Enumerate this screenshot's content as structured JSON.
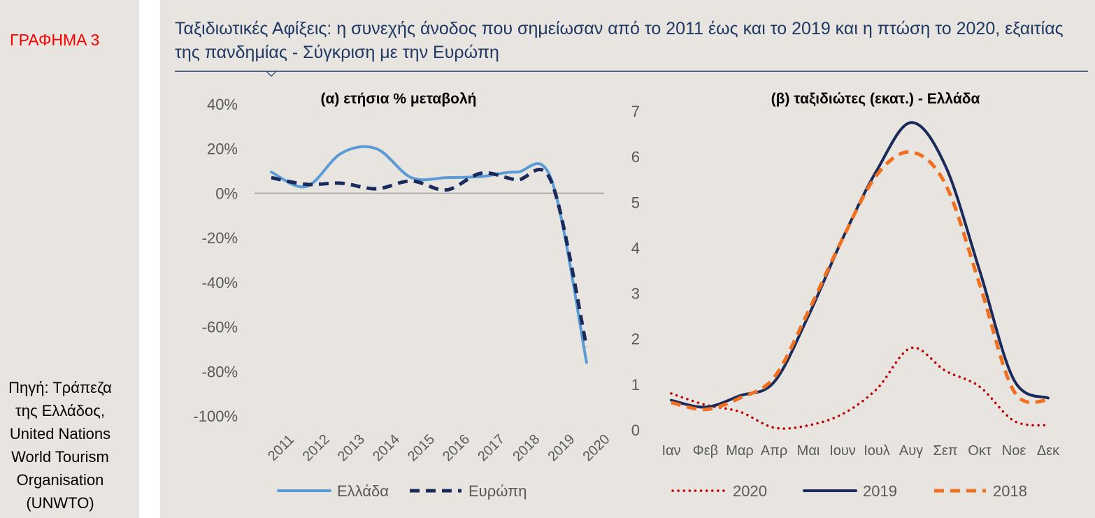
{
  "chart_label": "ΓΡΑΦΗΜΑ 3",
  "source_note": "Πηγή: Τράπεζα της Ελλάδος, United Nations World Tourism Organisation (UNWTO)",
  "title": "Ταξιδιωτικές Αφίξεις: η συνεχής άνοδος που σημείωσαν από το 2011 έως και το 2019 και η πτώση το 2020, εξαιτίας της πανδημίας - Σύγκριση με την Ευρώπη",
  "chart_data": [
    {
      "type": "line",
      "title": "(α) ετήσια % μεταβολή",
      "xlabel": "",
      "ylabel": "",
      "ylim": [
        -100,
        40
      ],
      "yticks": [
        40,
        20,
        0,
        -20,
        -40,
        -60,
        -80,
        -100
      ],
      "ytick_labels": [
        "40%",
        "20%",
        "0%",
        "-20%",
        "-40%",
        "-60%",
        "-80%",
        "-100%"
      ],
      "categories": [
        "2011",
        "2012",
        "2013",
        "2014",
        "2015",
        "2016",
        "2017",
        "2018",
        "2019",
        "2020"
      ],
      "legend": "bottom",
      "series": [
        {
          "name": "Ελλάδα",
          "color": "#5b9bd5",
          "style": "solid",
          "values": [
            9.5,
            3,
            18,
            20,
            7,
            7,
            7.5,
            9.5,
            6,
            -76
          ]
        },
        {
          "name": "Ευρώπη",
          "color": "#1a2a5a",
          "style": "dashed",
          "values": [
            7,
            4,
            4.5,
            2,
            5.5,
            1.5,
            9,
            6,
            5,
            -69
          ]
        }
      ]
    },
    {
      "type": "line",
      "title": "(β) ταξιδιώτες (εκατ.) - Ελλάδα",
      "xlabel": "",
      "ylabel": "",
      "ylim": [
        0,
        7
      ],
      "yticks": [
        7,
        6,
        5,
        4,
        3,
        2,
        1,
        0
      ],
      "ytick_labels": [
        "7",
        "6",
        "5",
        "4",
        "3",
        "2",
        "1",
        "0"
      ],
      "categories": [
        "Ιαν",
        "Φεβ",
        "Μαρ",
        "Απρ",
        "Μαι",
        "Ιουν",
        "Ιουλ",
        "Αυγ",
        "Σεπ",
        "Οκτ",
        "Νοε",
        "Δεκ"
      ],
      "legend": "bottom",
      "series": [
        {
          "name": "2020",
          "color": "#c00000",
          "style": "dotted",
          "values": [
            0.8,
            0.55,
            0.4,
            0.05,
            0.1,
            0.35,
            0.9,
            1.8,
            1.3,
            0.95,
            0.2,
            0.1
          ]
        },
        {
          "name": "2019",
          "color": "#1a2a5a",
          "style": "solid",
          "values": [
            0.65,
            0.5,
            0.75,
            1.05,
            2.5,
            4.2,
            5.7,
            6.75,
            5.8,
            3.5,
            1.1,
            0.7
          ]
        },
        {
          "name": "2018",
          "color": "#f07020",
          "style": "dashed",
          "values": [
            0.6,
            0.45,
            0.7,
            1.15,
            2.6,
            4.2,
            5.6,
            6.1,
            5.4,
            3.2,
            0.85,
            0.65
          ]
        }
      ]
    }
  ]
}
